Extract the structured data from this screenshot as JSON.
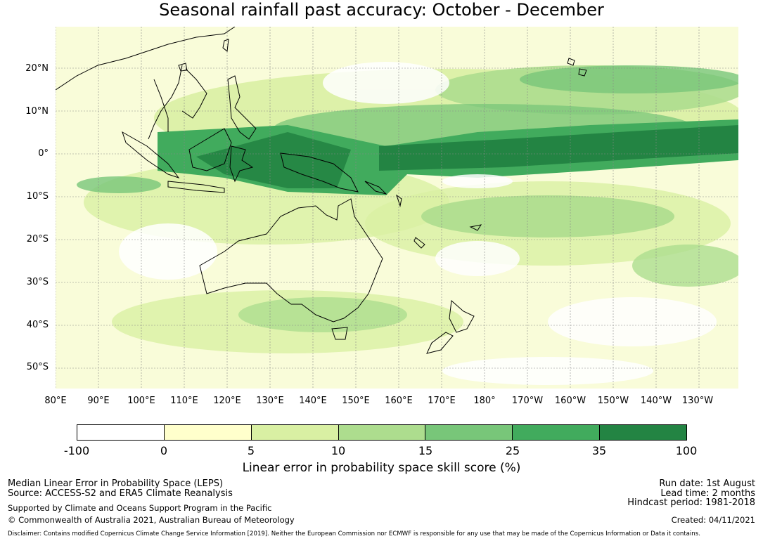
{
  "title": "Seasonal rainfall past accuracy: October - December",
  "map": {
    "lat_labels": [
      "20°N",
      "10°N",
      "0°",
      "10°S",
      "20°S",
      "30°S",
      "40°S",
      "50°S"
    ],
    "lon_labels": [
      "80°E",
      "90°E",
      "100°E",
      "110°E",
      "120°E",
      "130°E",
      "140°E",
      "150°E",
      "160°E",
      "170°E",
      "180°",
      "170°W",
      "160°W",
      "150°W",
      "140°W",
      "130°W"
    ]
  },
  "colorbar": {
    "title": "Linear error in probability space skill score (%)",
    "ticks": [
      "-100",
      "0",
      "5",
      "10",
      "15",
      "25",
      "35",
      "100"
    ],
    "colors": [
      "#ffffff",
      "#ffffcc",
      "#d9f0a3",
      "#addd8e",
      "#78c679",
      "#41ab5d",
      "#238443"
    ]
  },
  "footer": {
    "line1": "Median Linear Error in Probability Space (LEPS)",
    "line2": "Source: ACCESS-S2 and ERA5 Climate Reanalysis",
    "line3": "Supported by Climate and Oceans Support Program in the Pacific",
    "line4": "© Commonwealth of Australia 2021, Australian Bureau of Meteorology",
    "run_date": "Run date: 1st August",
    "lead_time": "Lead time: 2 months",
    "hindcast": "Hindcast period: 1981-2018",
    "created": "Created: 04/11/2021",
    "disclaimer": "Disclaimer: Contains modified Copernicus Climate Change Service Information [2019]. Neither the European Commission nor ECMWF is responsible for any use that may be made of the Copernicus Information or Data it contains."
  }
}
